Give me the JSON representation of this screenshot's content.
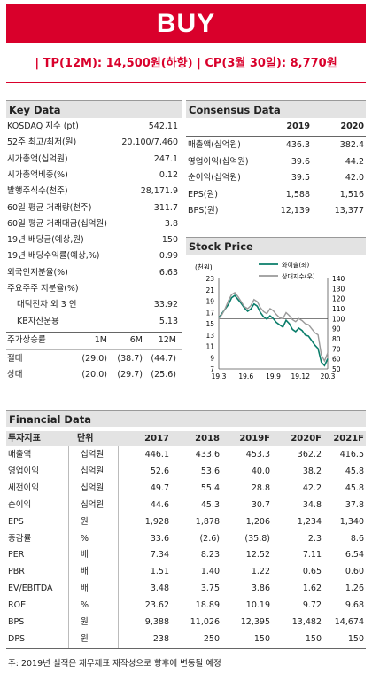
{
  "banner": "BUY",
  "tp_line": "| TP(12M): 14,500원(하향) | CP(3월 30일): 8,770원",
  "key_data": {
    "title": "Key Data",
    "rows": [
      {
        "label": "KOSDAQ 지수 (pt)",
        "value": "542.11"
      },
      {
        "label": "52주 최고/최저(원)",
        "value": "20,100/7,460"
      },
      {
        "label": "시가총액(십억원)",
        "value": "247.1"
      },
      {
        "label": "시가총액비중(%)",
        "value": "0.12"
      },
      {
        "label": "발행주식수(천주)",
        "value": "28,171.9"
      },
      {
        "label": "60일 평균 거래량(천주)",
        "value": "311.7"
      },
      {
        "label": "60일 평균 거래대금(십억원)",
        "value": "3.8"
      },
      {
        "label": "19년 배당금(예상,원)",
        "value": "150"
      },
      {
        "label": "19년 배당수익률(예상,%)",
        "value": "0.99"
      },
      {
        "label": "외국인지분율(%)",
        "value": "6.63"
      },
      {
        "label": "주요주주 지분율(%)",
        "value": ""
      },
      {
        "label": "대덕전자 외 3 인",
        "value": "33.92"
      },
      {
        "label": "KB자산운용",
        "value": "5.13"
      }
    ],
    "perf_header": [
      "주가상승률",
      "1M",
      "6M",
      "12M"
    ],
    "perf_rows": [
      {
        "label": "절대",
        "values": [
          "(29.0)",
          "(38.7)",
          "(44.7)"
        ]
      },
      {
        "label": "상대",
        "values": [
          "(20.0)",
          "(29.7)",
          "(25.6)"
        ]
      }
    ]
  },
  "consensus": {
    "title": "Consensus Data",
    "years": [
      "2019",
      "2020"
    ],
    "rows": [
      {
        "label": "매출액(십억원)",
        "values": [
          "436.3",
          "382.4"
        ]
      },
      {
        "label": "영업이익(십억원)",
        "values": [
          "39.6",
          "44.2"
        ]
      },
      {
        "label": "순이익(십억원)",
        "values": [
          "39.5",
          "42.0"
        ]
      },
      {
        "label": "EPS(원)",
        "values": [
          "1,588",
          "1,516"
        ]
      },
      {
        "label": "BPS(원)",
        "values": [
          "12,139",
          "13,377"
        ]
      }
    ]
  },
  "stock_price": {
    "title": "Stock Price",
    "left_unit": "(천원)",
    "legend": [
      "와이솔(좌)",
      "상대지수(우)"
    ],
    "colors": {
      "price": "#0a7d6a",
      "relative": "#9a9a9a"
    }
  },
  "chart_data": {
    "type": "line",
    "x_ticks": [
      "19.3",
      "19.6",
      "19.9",
      "19.12",
      "20.3"
    ],
    "ylim_left": [
      7,
      23
    ],
    "left_ticks": [
      "23",
      "21",
      "19",
      "17",
      "15",
      "13",
      "11",
      "9",
      "7"
    ],
    "ylim_right": [
      50,
      140
    ],
    "right_ticks": [
      "140",
      "130",
      "120",
      "110",
      "100",
      "90",
      "80",
      "70",
      "60",
      "50"
    ],
    "reference_line_right": 100,
    "series": [
      {
        "name": "와이솔(좌)",
        "axis": "left",
        "values": [
          16.0,
          16.8,
          17.6,
          18.4,
          19.6,
          20.0,
          19.3,
          18.6,
          17.8,
          17.2,
          17.6,
          18.5,
          18.1,
          17.0,
          16.2,
          15.8,
          16.4,
          15.9,
          15.2,
          14.8,
          14.4,
          15.6,
          15.0,
          14.0,
          13.6,
          14.2,
          13.8,
          13.0,
          12.8,
          12.0,
          11.2,
          10.6,
          8.2,
          7.6,
          8.8
        ]
      },
      {
        "name": "상대지수(우)",
        "axis": "right",
        "values": [
          100,
          104,
          110,
          118,
          124,
          126,
          122,
          117,
          112,
          110,
          113,
          119,
          117,
          111,
          107,
          105,
          110,
          108,
          104,
          101,
          100,
          106,
          103,
          99,
          97,
          100,
          98,
          95,
          94,
          90,
          86,
          84,
          64,
          58,
          66
        ]
      }
    ]
  },
  "financial": {
    "title": "Financial Data",
    "header": [
      "투자지표",
      "단위",
      "2017",
      "2018",
      "2019F",
      "2020F",
      "2021F"
    ],
    "rows": [
      [
        "매출액",
        "십억원",
        "446.1",
        "433.6",
        "453.3",
        "362.2",
        "416.5"
      ],
      [
        "영업이익",
        "십억원",
        "52.6",
        "53.6",
        "40.0",
        "38.2",
        "45.8"
      ],
      [
        "세전이익",
        "십억원",
        "49.7",
        "55.4",
        "28.8",
        "42.2",
        "45.8"
      ],
      [
        "순이익",
        "십억원",
        "44.6",
        "45.3",
        "30.7",
        "34.8",
        "37.8"
      ],
      [
        "EPS",
        "원",
        "1,928",
        "1,878",
        "1,206",
        "1,234",
        "1,340"
      ],
      [
        "증감률",
        "%",
        "33.6",
        "(2.6)",
        "(35.8)",
        "2.3",
        "8.6"
      ],
      [
        "PER",
        "배",
        "7.34",
        "8.23",
        "12.52",
        "7.11",
        "6.54"
      ],
      [
        "PBR",
        "배",
        "1.51",
        "1.40",
        "1.22",
        "0.65",
        "0.60"
      ],
      [
        "EV/EBITDA",
        "배",
        "3.48",
        "3.75",
        "3.86",
        "1.62",
        "1.26"
      ],
      [
        "ROE",
        "%",
        "23.62",
        "18.89",
        "10.19",
        "9.72",
        "9.68"
      ],
      [
        "BPS",
        "원",
        "9,388",
        "11,026",
        "12,395",
        "13,482",
        "14,674"
      ],
      [
        "DPS",
        "원",
        "238",
        "250",
        "150",
        "150",
        "150"
      ]
    ]
  },
  "note": "주: 2019년 실적은 재무제표 재작성으로 향후에 변동될 예정"
}
